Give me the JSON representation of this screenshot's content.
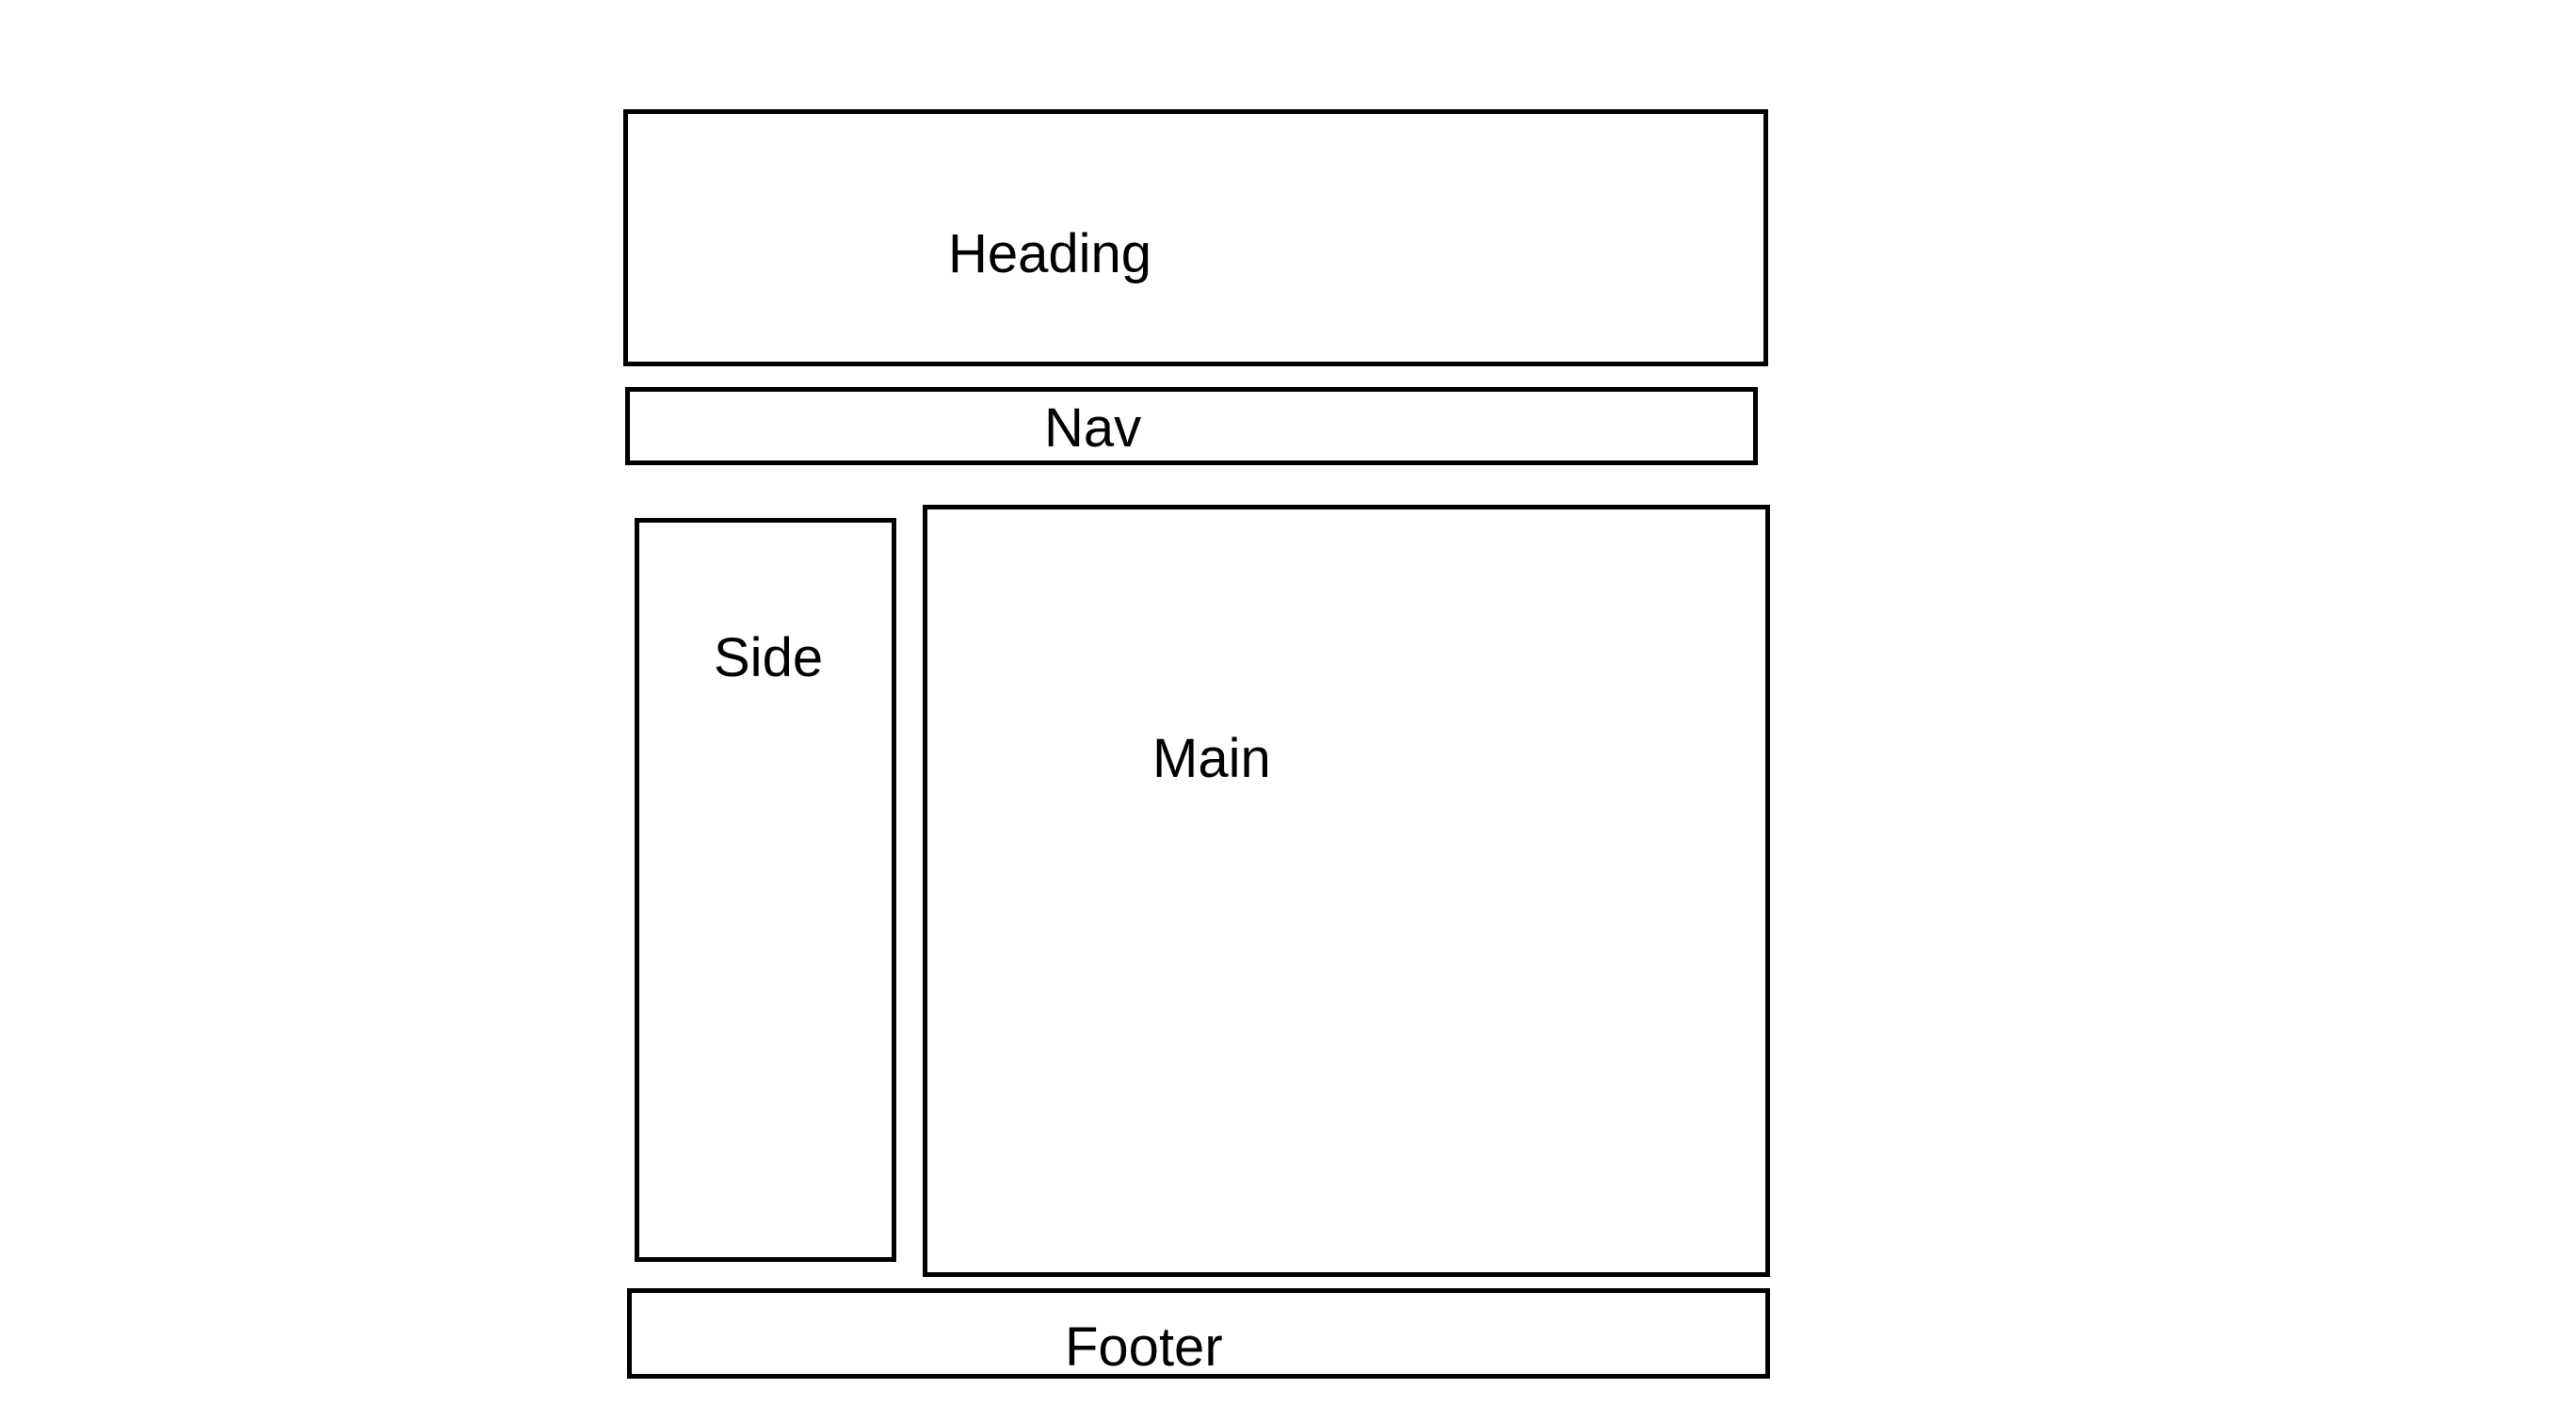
{
  "diagram": {
    "heading": {
      "label": "Heading"
    },
    "nav": {
      "label": "Nav"
    },
    "side": {
      "label": "Side"
    },
    "main": {
      "label": "Main"
    },
    "footer": {
      "label": "Footer"
    }
  },
  "colors": {
    "border": "#000000",
    "background": "#ffffff",
    "text": "#000000"
  }
}
